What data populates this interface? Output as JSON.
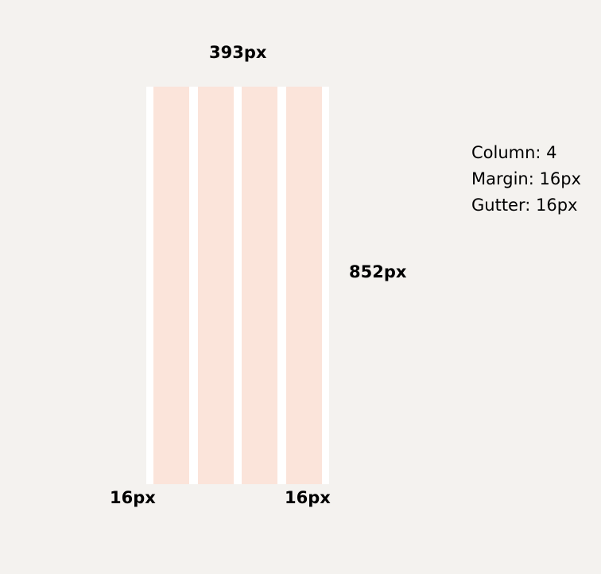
{
  "dimensions": {
    "width_label": "393px",
    "height_label": "852px",
    "margin_left_label": "16px",
    "margin_right_label": "16px"
  },
  "grid": {
    "columns": 4,
    "frame_color": "#ffffff",
    "column_color": "#fbe4da",
    "background_color": "#f4f2ef"
  },
  "specs": [
    "Column: 4",
    "Margin: 16px",
    "Gutter: 16px"
  ]
}
